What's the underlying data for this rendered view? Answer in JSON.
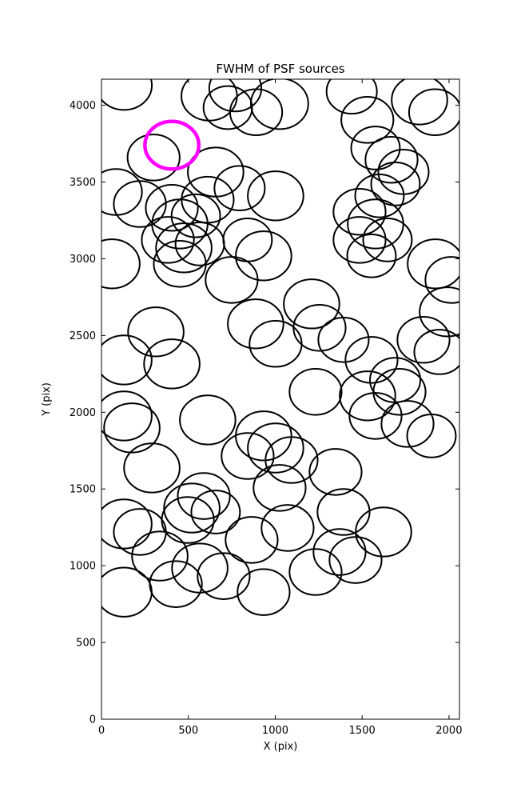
{
  "chart_data": {
    "type": "scatter",
    "title": "FWHM of PSF sources",
    "xlabel": "X (pix)",
    "ylabel": "Y (pix)",
    "xlim": [
      0,
      2060
    ],
    "ylim": [
      0,
      4170
    ],
    "xticks": [
      0,
      500,
      1000,
      1500,
      2000
    ],
    "yticks": [
      0,
      500,
      1000,
      1500,
      2000,
      2500,
      3000,
      3500,
      4000
    ],
    "grid": false,
    "legend": "none",
    "marker_color": "#000000",
    "highlight_color": "#ff00ff",
    "circles": [
      [
        130,
        4130,
        160
      ],
      [
        620,
        4060,
        160
      ],
      [
        727,
        3985,
        140
      ],
      [
        770,
        4110,
        150
      ],
      [
        890,
        3955,
        150
      ],
      [
        1025,
        4010,
        165
      ],
      [
        1440,
        4090,
        145
      ],
      [
        1530,
        3905,
        150
      ],
      [
        1830,
        4035,
        160
      ],
      [
        1920,
        3955,
        150
      ],
      [
        300,
        3660,
        150
      ],
      [
        657,
        3565,
        160
      ],
      [
        795,
        3460,
        145
      ],
      [
        611,
        3385,
        150
      ],
      [
        83,
        3435,
        150
      ],
      [
        221,
        3357,
        150
      ],
      [
        1002,
        3410,
        160
      ],
      [
        1577,
        3722,
        140
      ],
      [
        1669,
        3645,
        150
      ],
      [
        1692,
        3488,
        140
      ],
      [
        1738,
        3566,
        145
      ],
      [
        1600,
        3410,
        140
      ],
      [
        1485,
        3306,
        150
      ],
      [
        1577,
        3227,
        160
      ],
      [
        1485,
        3123,
        150
      ],
      [
        1646,
        3123,
        140
      ],
      [
        1554,
        3019,
        140
      ],
      [
        405,
        3332,
        150
      ],
      [
        451,
        3227,
        160
      ],
      [
        543,
        3280,
        140
      ],
      [
        382,
        3123,
        150
      ],
      [
        474,
        3071,
        160
      ],
      [
        566,
        3097,
        140
      ],
      [
        451,
        2967,
        150
      ],
      [
        933,
        3019,
        160
      ],
      [
        841,
        3123,
        140
      ],
      [
        60,
        2967,
        160
      ],
      [
        1922,
        2967,
        160
      ],
      [
        2014,
        2862,
        150
      ],
      [
        749,
        2862,
        150
      ],
      [
        1209,
        2706,
        160
      ],
      [
        1991,
        2654,
        160
      ],
      [
        1255,
        2550,
        150
      ],
      [
        887,
        2576,
        160
      ],
      [
        313,
        2524,
        160
      ],
      [
        1393,
        2472,
        145
      ],
      [
        1002,
        2446,
        150
      ],
      [
        1853,
        2472,
        150
      ],
      [
        1945,
        2393,
        145
      ],
      [
        129,
        2341,
        160
      ],
      [
        405,
        2315,
        160
      ],
      [
        1554,
        2341,
        150
      ],
      [
        1232,
        2133,
        150
      ],
      [
        1531,
        2107,
        160
      ],
      [
        1690,
        2210,
        145
      ],
      [
        1715,
        2133,
        150
      ],
      [
        129,
        1976,
        160
      ],
      [
        175,
        1898,
        160
      ],
      [
        1577,
        1976,
        150
      ],
      [
        1761,
        1924,
        150
      ],
      [
        1899,
        1846,
        140
      ],
      [
        611,
        1950,
        160
      ],
      [
        933,
        1846,
        160
      ],
      [
        1002,
        1767,
        160
      ],
      [
        841,
        1715,
        150
      ],
      [
        1094,
        1689,
        150
      ],
      [
        1347,
        1611,
        150
      ],
      [
        290,
        1637,
        160
      ],
      [
        1025,
        1507,
        150
      ],
      [
        520,
        1376,
        160
      ],
      [
        589,
        1454,
        150
      ],
      [
        657,
        1350,
        140
      ],
      [
        1393,
        1350,
        150
      ],
      [
        129,
        1272,
        160
      ],
      [
        221,
        1220,
        150
      ],
      [
        497,
        1298,
        150
      ],
      [
        1071,
        1246,
        150
      ],
      [
        1623,
        1220,
        160
      ],
      [
        864,
        1168,
        150
      ],
      [
        336,
        1063,
        160
      ],
      [
        1370,
        1089,
        150
      ],
      [
        1462,
        1037,
        150
      ],
      [
        566,
        985,
        160
      ],
      [
        703,
        932,
        150
      ],
      [
        1232,
        959,
        150
      ],
      [
        129,
        828,
        160
      ],
      [
        428,
        880,
        150
      ],
      [
        933,
        828,
        150
      ]
    ],
    "highlight": {
      "x": 405,
      "y": 3740,
      "r": 155
    }
  }
}
